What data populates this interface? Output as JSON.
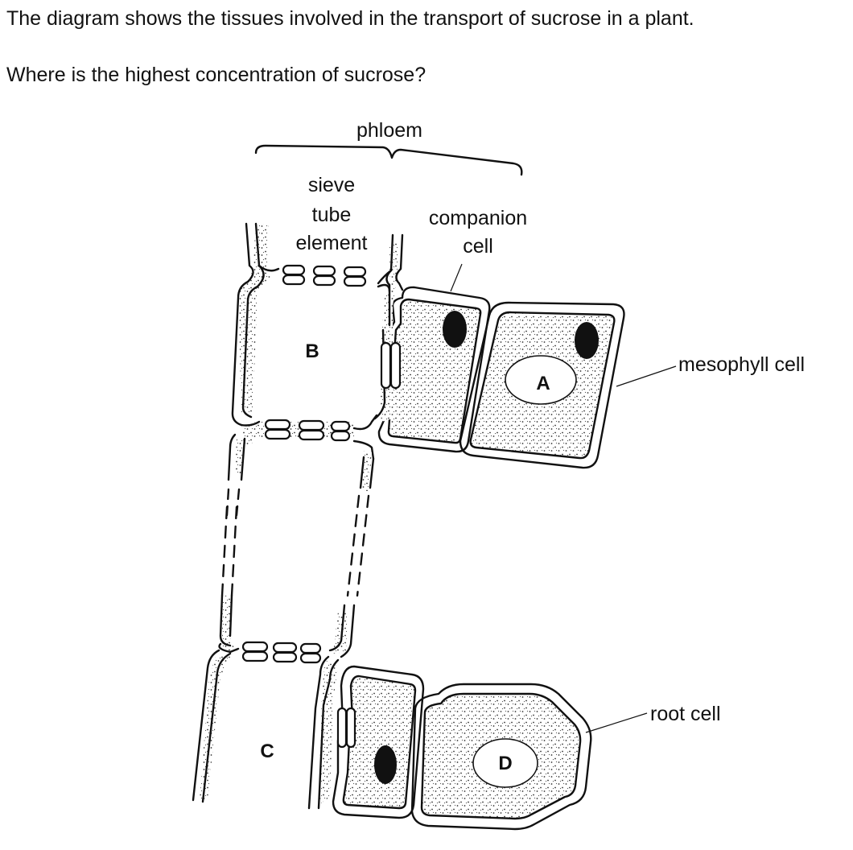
{
  "question": {
    "line1": "The diagram shows the tissues involved in the transport of sucrose in a plant.",
    "line2": "Where is the highest concentration of sucrose?"
  },
  "diagram": {
    "labels": {
      "phloem": "phloem",
      "sieve_tube_element": [
        "sieve",
        "tube",
        "element"
      ],
      "companion_cell": [
        "companion",
        "cell"
      ],
      "mesophyll_cell": "mesophyll cell",
      "root_cell": "root cell"
    },
    "letters": {
      "a": "A",
      "b": "B",
      "c": "C",
      "d": "D"
    }
  }
}
